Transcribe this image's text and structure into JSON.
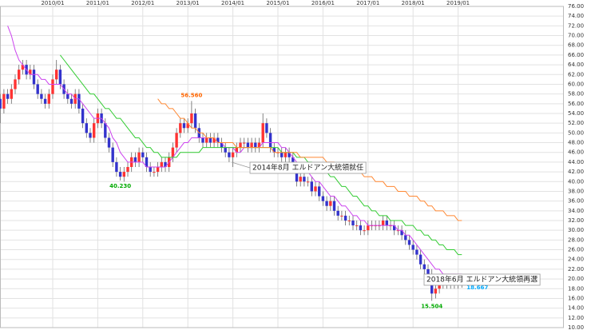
{
  "chart_data": {
    "type": "candlestick",
    "categories": [
      null,
      null,
      null,
      null,
      null,
      null,
      null,
      null,
      null,
      null,
      null,
      null,
      null,
      null,
      "2010/01",
      null,
      null,
      null,
      null,
      null,
      null,
      null,
      null,
      null,
      null,
      null,
      "2011/01",
      null,
      null,
      null,
      null,
      null,
      null,
      null,
      null,
      null,
      null,
      null,
      "2012/01",
      null,
      null,
      null,
      null,
      null,
      null,
      null,
      null,
      null,
      null,
      null,
      "2013/01",
      null,
      null,
      null,
      null,
      null,
      null,
      null,
      null,
      null,
      null,
      null,
      "2014/01",
      null,
      null,
      null,
      null,
      null,
      null,
      null,
      null,
      null,
      null,
      null,
      "2015/01",
      null,
      null,
      null,
      null,
      null,
      null,
      null,
      null,
      null,
      null,
      null,
      "2016/01",
      null,
      null,
      null,
      null,
      null,
      null,
      null,
      null,
      null,
      null,
      null,
      "2017/01",
      null,
      null,
      null,
      null,
      null,
      null,
      null,
      null,
      null,
      null,
      null,
      "2018/01",
      null,
      null,
      null,
      null,
      null,
      null,
      null,
      null,
      null,
      null,
      null,
      "2019/01",
      null
    ],
    "open": [
      57,
      55,
      58,
      57,
      59,
      61,
      63,
      64,
      62,
      63,
      60,
      58,
      57,
      56,
      58,
      61,
      63,
      60,
      58,
      57,
      56,
      58,
      55,
      52,
      50,
      49,
      52,
      54,
      52,
      49,
      47,
      44,
      42,
      41,
      42,
      43,
      45,
      44,
      46,
      45,
      43,
      42,
      42,
      43,
      44,
      43,
      45,
      47,
      50,
      52,
      51,
      52,
      54,
      51,
      49,
      48,
      49,
      48,
      49,
      48,
      47,
      46,
      45,
      46,
      47,
      48,
      48,
      47,
      48,
      47,
      48,
      52,
      50,
      47,
      46,
      46,
      45,
      46,
      45,
      43,
      40,
      41,
      40,
      40,
      38,
      39,
      37,
      36,
      35,
      36,
      34,
      33,
      33,
      32,
      32,
      31,
      31,
      30,
      30,
      31,
      31,
      31,
      31,
      32,
      31,
      31,
      30,
      30,
      29,
      28,
      27,
      26,
      25,
      23,
      22,
      21,
      17,
      18,
      20,
      19,
      20,
      19,
      19,
      19
    ],
    "high": [
      58,
      59,
      59,
      60,
      62,
      64,
      65,
      65,
      64,
      64,
      61,
      59,
      58,
      59,
      62,
      65,
      64,
      61,
      59,
      58,
      59,
      59,
      56,
      53,
      51,
      53,
      55,
      55,
      53,
      50,
      48,
      45,
      43,
      43,
      44,
      46,
      46,
      47,
      47,
      46,
      44,
      43,
      44,
      45,
      45,
      46,
      48,
      51,
      53,
      53,
      53,
      56.56,
      55,
      52,
      50,
      50,
      50,
      50,
      50,
      49,
      48,
      47,
      47,
      48,
      49,
      49,
      49,
      49,
      49,
      49,
      54,
      53,
      51,
      48,
      47,
      47,
      47,
      47,
      46,
      44,
      42,
      42,
      41,
      41,
      40,
      40,
      38,
      37,
      37,
      37,
      35,
      34,
      34,
      33,
      33,
      32,
      32,
      31,
      32,
      32,
      32,
      32,
      33,
      33,
      32,
      32,
      31,
      31,
      30,
      29,
      28,
      27,
      26,
      24,
      23,
      22,
      19,
      21,
      21,
      21,
      21,
      20,
      20,
      20
    ],
    "low": [
      52,
      54,
      56,
      56,
      58,
      60,
      62,
      61,
      61,
      59,
      57,
      56,
      55,
      55,
      57,
      60,
      59,
      57,
      56,
      55,
      55,
      54,
      51,
      49,
      48,
      48,
      51,
      51,
      48,
      46,
      43,
      41,
      40.23,
      40,
      41,
      42,
      43,
      43,
      44,
      42,
      41,
      41,
      41,
      42,
      42,
      42,
      44,
      46,
      49,
      50,
      50,
      51,
      50,
      48,
      47,
      47,
      47,
      47,
      47,
      46,
      45,
      44,
      43,
      45,
      46,
      47,
      46,
      46,
      46,
      46,
      47,
      49,
      46,
      45,
      45,
      44,
      44,
      44,
      42,
      39,
      39,
      39,
      39,
      37,
      37,
      36,
      35,
      34,
      34,
      33,
      32,
      32,
      31,
      31,
      30,
      30,
      29,
      29,
      29,
      30,
      30,
      30,
      30,
      30,
      30,
      29,
      29,
      28,
      27,
      26,
      25,
      24,
      22,
      21,
      20,
      15.504,
      16,
      17,
      18,
      18,
      18,
      18,
      18,
      18.2
    ],
    "close": [
      55,
      58,
      57,
      59,
      61,
      63,
      64,
      62,
      63,
      60,
      58,
      57,
      56,
      58,
      61,
      63,
      60,
      58,
      57,
      56,
      58,
      55,
      52,
      50,
      49,
      52,
      54,
      52,
      49,
      47,
      44,
      42,
      41,
      42,
      43,
      45,
      44,
      46,
      45,
      43,
      42,
      42,
      43,
      44,
      43,
      45,
      47,
      50,
      52,
      51,
      52,
      54,
      51,
      49,
      48,
      49,
      48,
      49,
      48,
      47,
      46,
      45,
      46,
      47,
      48,
      48,
      47,
      48,
      47,
      48,
      52,
      50,
      47,
      46,
      46,
      45,
      46,
      45,
      43,
      40,
      41,
      40,
      40,
      38,
      39,
      37,
      36,
      35,
      36,
      34,
      33,
      33,
      32,
      32,
      31,
      31,
      30,
      30,
      31,
      31,
      31,
      31,
      32,
      31,
      31,
      30,
      30,
      29,
      28,
      27,
      26,
      25,
      23,
      22,
      21,
      17,
      18,
      20,
      19,
      20,
      19,
      19,
      19,
      18.684
    ],
    "up_color": "#ff3333",
    "down_color": "#3333cc",
    "lines": [
      {
        "color": "#cc44ee",
        "values": [
          null,
          null,
          72,
          70,
          67,
          65,
          64,
          63,
          62,
          62,
          62,
          61,
          61,
          60,
          60,
          60,
          60,
          59,
          58,
          58,
          57,
          57,
          56,
          55,
          54,
          53,
          53,
          53,
          52,
          51,
          49,
          48,
          46,
          45,
          44,
          44,
          44,
          44,
          44,
          43,
          43,
          43,
          43,
          43,
          43,
          44,
          45,
          46,
          47,
          48,
          48,
          49,
          49,
          49,
          49,
          49,
          49,
          49,
          48,
          48,
          47,
          47,
          47,
          46,
          46,
          47,
          47,
          47,
          47,
          47,
          48,
          48,
          48,
          48,
          48,
          47,
          47,
          46,
          45,
          44,
          43,
          42,
          42,
          41,
          40,
          40,
          39,
          38,
          37,
          37,
          36,
          35,
          35,
          34,
          33,
          33,
          32,
          32,
          31,
          31,
          31,
          31,
          31,
          31,
          31,
          31,
          30,
          30,
          29,
          29,
          28,
          27,
          26,
          25,
          24,
          23,
          22,
          22,
          21,
          21,
          21,
          21,
          21,
          21
        ]
      },
      {
        "color": "#33cc33",
        "values": [
          null,
          null,
          null,
          null,
          null,
          null,
          null,
          null,
          null,
          null,
          null,
          null,
          null,
          null,
          null,
          null,
          66,
          65,
          64,
          63,
          62,
          61,
          60,
          59,
          58,
          58,
          57,
          56,
          55,
          55,
          54,
          53,
          53,
          52,
          51,
          50,
          49,
          49,
          48,
          47,
          47,
          46,
          46,
          45,
          45,
          45,
          45,
          45,
          46,
          46,
          46,
          46,
          46,
          46,
          47,
          47,
          47,
          47,
          47,
          47,
          47,
          47,
          47,
          47,
          47,
          47,
          47,
          47,
          47,
          47,
          47,
          47,
          47,
          47,
          47,
          46,
          46,
          46,
          46,
          45,
          45,
          45,
          44,
          44,
          43,
          43,
          42,
          42,
          41,
          41,
          40,
          39,
          39,
          38,
          37,
          37,
          36,
          35,
          35,
          34,
          34,
          33,
          33,
          33,
          32,
          32,
          32,
          32,
          31,
          31,
          31,
          30,
          30,
          29,
          29,
          28,
          28,
          27,
          27,
          26,
          26,
          26,
          25,
          25
        ]
      },
      {
        "color": "#ff8833",
        "values": [
          null,
          null,
          null,
          null,
          null,
          null,
          null,
          null,
          null,
          null,
          null,
          null,
          null,
          null,
          null,
          null,
          null,
          null,
          null,
          null,
          null,
          null,
          null,
          null,
          null,
          null,
          null,
          null,
          null,
          null,
          null,
          null,
          null,
          null,
          null,
          null,
          null,
          null,
          null,
          null,
          null,
          null,
          57,
          56,
          56,
          55,
          55,
          54,
          53,
          53,
          52,
          51,
          51,
          50,
          50,
          49,
          49,
          49,
          48,
          48,
          48,
          48,
          48,
          47,
          47,
          47,
          47,
          47,
          47,
          47,
          47,
          47,
          47,
          46,
          46,
          46,
          46,
          46,
          46,
          46,
          45,
          45,
          45,
          45,
          45,
          45,
          45,
          44,
          44,
          44,
          43,
          43,
          43,
          43,
          42,
          42,
          42,
          41,
          41,
          41,
          40,
          40,
          40,
          39,
          39,
          39,
          38,
          38,
          38,
          37,
          37,
          37,
          36,
          36,
          35,
          35,
          34,
          34,
          34,
          33,
          33,
          33,
          32,
          32
        ]
      }
    ],
    "extreme_labels": [
      {
        "value": 56.56,
        "label": "56.560",
        "color": "#ff6600"
      },
      {
        "value": 40.23,
        "label": "40.230",
        "color": "#00aa00"
      },
      {
        "value": 15.504,
        "color": "#00aa00"
      }
    ],
    "price_tags": [
      {
        "value": 18.684,
        "color": "#ff0066"
      },
      {
        "value": 18.667,
        "color": "#00aaff"
      }
    ],
    "annotations": [
      "2014年8月 エルドアン大統領就任",
      "2018年6月 エルドアン大統領再選"
    ],
    "ylim": [
      10,
      76
    ],
    "yticks": [
      {
        "value": 10,
        "label": "10.00"
      },
      {
        "value": 12,
        "label": "12.00"
      },
      {
        "value": 14,
        "label": "14.00"
      },
      {
        "value": 16,
        "label": "16.00"
      },
      {
        "value": 18,
        "label": "18.00"
      },
      {
        "value": 20,
        "label": "20.00"
      },
      {
        "value": 22,
        "label": "22.00"
      },
      {
        "value": 24,
        "label": "24.00"
      },
      {
        "value": 26,
        "label": "26.00"
      },
      {
        "value": 28,
        "label": "28.00"
      },
      {
        "value": 30,
        "label": "30.00"
      },
      {
        "value": 32,
        "label": "32.00"
      },
      {
        "value": 34,
        "label": "34.00"
      },
      {
        "value": 36,
        "label": "36.00"
      },
      {
        "value": 38,
        "label": "38.00"
      },
      {
        "value": 40,
        "label": "40.00"
      },
      {
        "value": 42,
        "label": "42.00"
      },
      {
        "value": 44,
        "label": "44.00"
      },
      {
        "value": 46,
        "label": "46.00"
      },
      {
        "value": 48,
        "label": "48.00"
      },
      {
        "value": 50,
        "label": "50.00"
      },
      {
        "value": 52,
        "label": "52.00"
      },
      {
        "value": 54,
        "label": "54.00"
      },
      {
        "value": 56,
        "label": "56.00"
      },
      {
        "value": 58,
        "label": "58.00"
      },
      {
        "value": 60,
        "label": "60.00"
      },
      {
        "value": 62,
        "label": "62.00"
      },
      {
        "value": 64,
        "label": "64.00"
      },
      {
        "value": 66,
        "label": "66.00"
      },
      {
        "value": 68,
        "label": "68.00"
      },
      {
        "value": 70,
        "label": "70.00"
      },
      {
        "value": 72,
        "label": "72.00"
      },
      {
        "value": 74,
        "label": "74.00"
      },
      {
        "value": 76,
        "label": "76.00"
      }
    ],
    "grid": true
  }
}
